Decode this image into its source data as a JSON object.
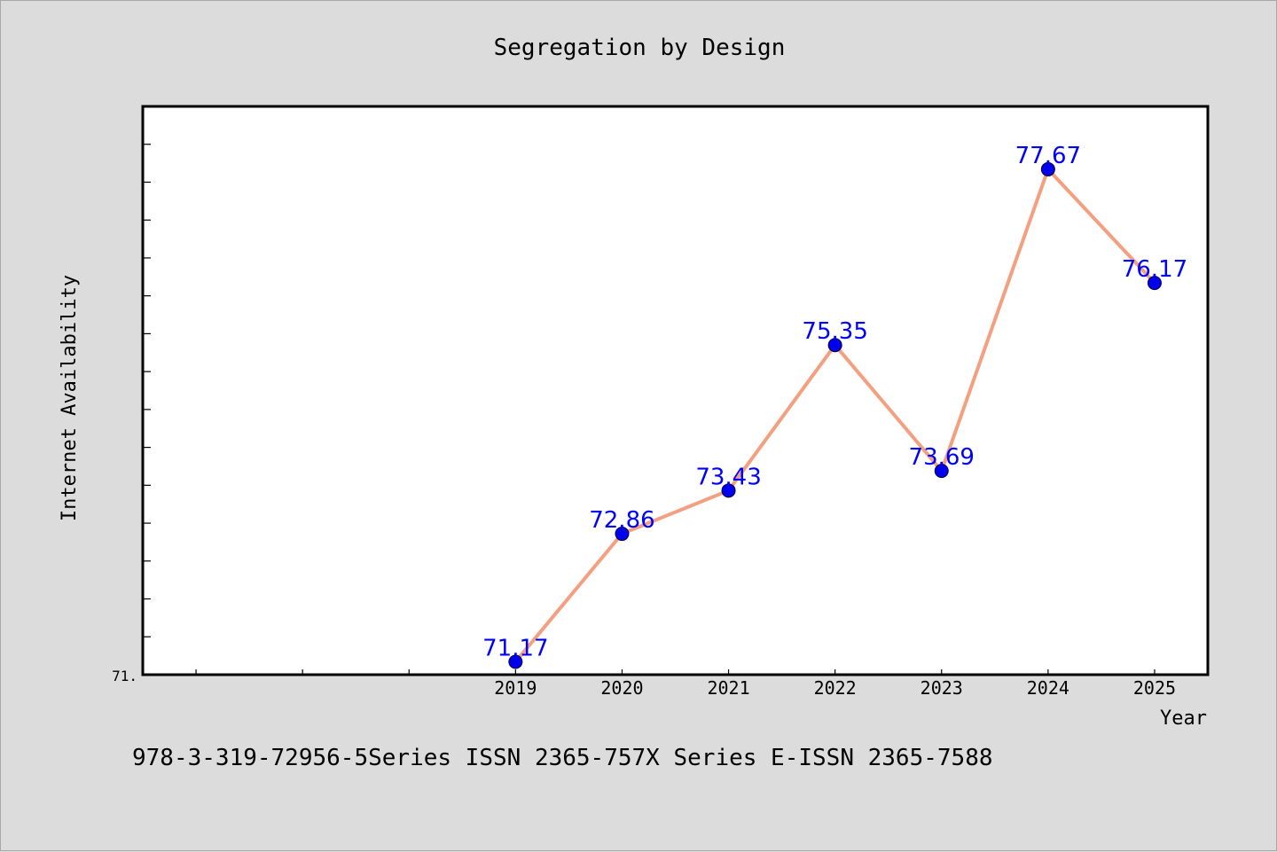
{
  "chart_data": {
    "type": "line",
    "title": "Segregation by Design",
    "xlabel": "Year",
    "ylabel": "Internet Availability",
    "categories": [
      "2019",
      "2020",
      "2021",
      "2022",
      "2023",
      "2024",
      "2025"
    ],
    "series": [
      {
        "values": [
          71.17,
          72.86,
          73.43,
          75.35,
          73.69,
          77.67,
          76.17
        ],
        "labels": [
          "71.17",
          "72.86",
          "73.43",
          "75.35",
          "73.69",
          "77.67",
          "76.17"
        ]
      }
    ],
    "ylim": [
      71.0,
      78.5
    ],
    "y_min_label": "71.",
    "x_slots": 10,
    "line_color": "#f4a080",
    "marker_color": "#0000ee",
    "label_color": "#0000ff",
    "grid": false
  },
  "footer": {
    "text": "978-3-319-72956-5Series ISSN 2365-757X Series E-ISSN 2365-7588"
  }
}
